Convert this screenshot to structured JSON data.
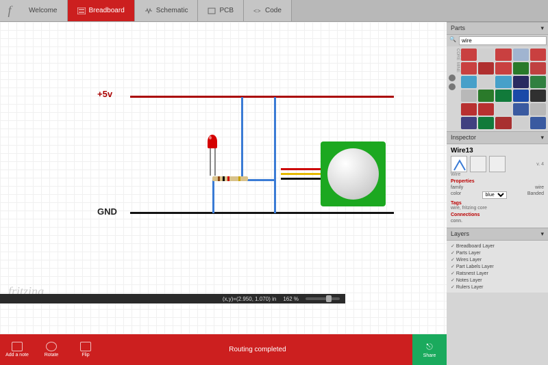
{
  "tabs": {
    "welcome": "Welcome",
    "breadboard": "Breadboard",
    "schematic": "Schematic",
    "pcb": "PCB",
    "code": "Code"
  },
  "canvas": {
    "label_5v": "+5v",
    "label_gnd": "GND",
    "rail_color_top": "#aa0000",
    "rail_color_bottom": "#111111",
    "wire_color": "#3a7bd5",
    "led_color": "#d40000",
    "resistor_body": "#d9c28a",
    "resistor_bands": [
      "#8b4513",
      "#000000",
      "#cc0000",
      "#c9a300"
    ],
    "pir_board": "#1ca820",
    "pir_wires": [
      "#cc0000",
      "#e6b800",
      "#111111"
    ]
  },
  "watermark": "fritzing",
  "parts_panel": {
    "title": "Parts",
    "search_value": "wire",
    "categories": [
      "CORE",
      "MINE"
    ],
    "thumbs": [
      "#c94040",
      "#d0d0d0",
      "#c94040",
      "#a0b4d0",
      "#c94040",
      "#c94040",
      "#b03030",
      "#c94040",
      "#2a7a2a",
      "#c04040",
      "#47a0c9",
      "#d0d0d0",
      "#47a0c9",
      "#2a2a60",
      "#308040",
      "#b8b8b8",
      "#2a7a2a",
      "#117a3a",
      "#1a4aa8",
      "#303030",
      "#b83030",
      "#b83030",
      "#d0d0d0",
      "#3a5aa0",
      "#b8b8b8",
      "#404080",
      "#117a3a",
      "#a83030",
      "#d0d0d0",
      "#3a5aa0"
    ]
  },
  "inspector": {
    "title": "Inspector",
    "name": "Wire13",
    "version": "v. 4",
    "type": "Wire",
    "section_props": "Properties",
    "family_label": "family",
    "family_value": "wire",
    "color_label": "color",
    "color_value": "blue",
    "banded_label": "Banded",
    "section_tags": "Tags",
    "tags_value": "wire, fritzing core",
    "section_conn": "Connections",
    "conn_label": "conn."
  },
  "layers": {
    "title": "Layers",
    "items": [
      "Breadboard Layer",
      "Parts Layer",
      "Wires Layer",
      "Part Labels Layer",
      "Ratsnest Layer",
      "Notes Layer",
      "Rulers Layer"
    ]
  },
  "bottombar": {
    "add_note": "Add a note",
    "rotate": "Rotate",
    "flip": "Flip",
    "status": "Routing completed",
    "share": "Share"
  },
  "statusbar": {
    "coords": "(x,y)=(2.950, 1.070) in",
    "zoom": "162 %"
  }
}
